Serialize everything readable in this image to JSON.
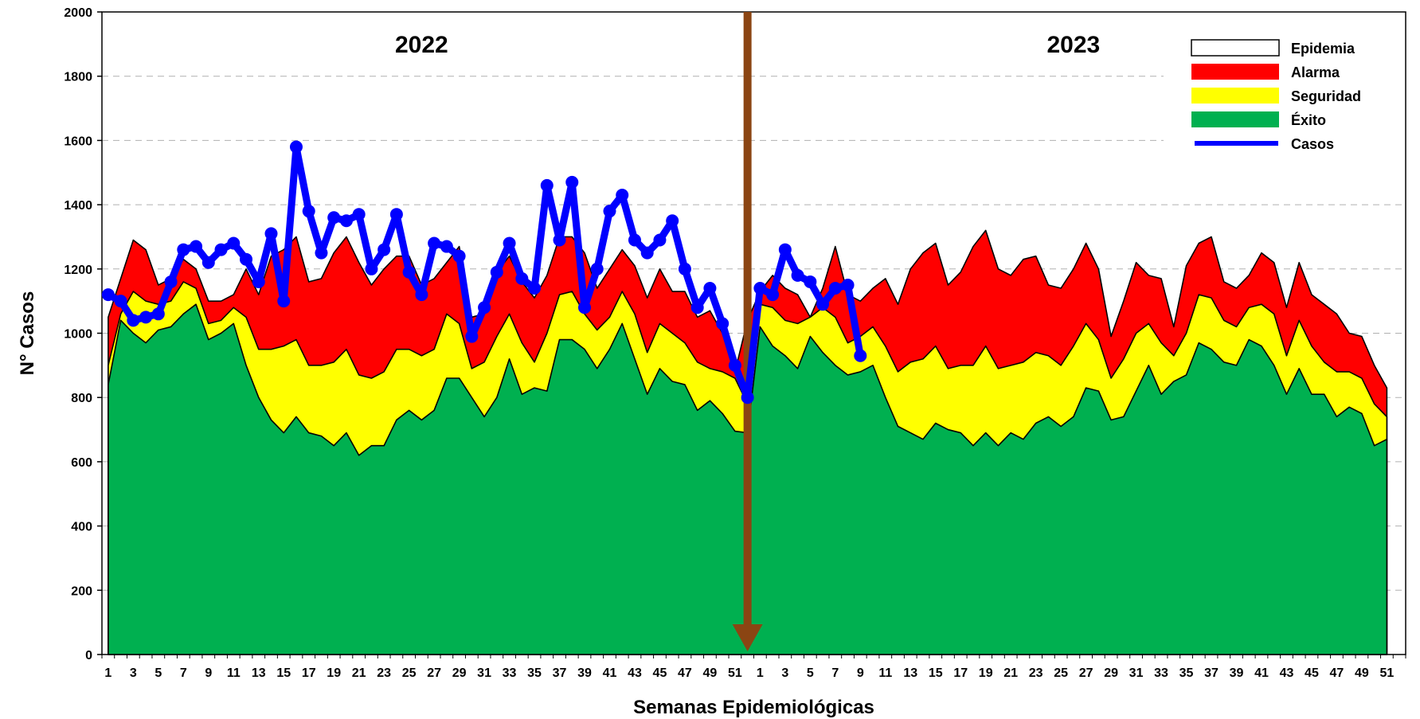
{
  "chart_data": {
    "type": "area",
    "title": "",
    "xlabel": "Semanas Epidemiológicas",
    "ylabel": "N° Casos",
    "ylim": [
      0,
      2000
    ],
    "yticks": [
      0,
      200,
      400,
      600,
      800,
      1000,
      1200,
      1400,
      1600,
      1800,
      2000
    ],
    "grid": "horizontal dashed",
    "legend_position": "top-right",
    "years": [
      "2022",
      "2023"
    ],
    "weeks_per_year": 52,
    "x_tick_labels_2022": [
      "1",
      "3",
      "5",
      "7",
      "9",
      "11",
      "13",
      "15",
      "17",
      "19",
      "21",
      "23",
      "25",
      "27",
      "29",
      "31",
      "33",
      "35",
      "37",
      "39",
      "41",
      "43",
      "45",
      "47",
      "49",
      "51"
    ],
    "x_tick_labels_2023": [
      "1",
      "3",
      "5",
      "7",
      "9",
      "11",
      "13",
      "15",
      "17",
      "19",
      "21",
      "23",
      "25",
      "27",
      "29",
      "31",
      "33",
      "35",
      "37",
      "39",
      "41",
      "43",
      "45",
      "47",
      "49",
      "51"
    ],
    "colors": {
      "epidemia": "#ffffff",
      "alarma": "#ff0000",
      "seguridad": "#ffff00",
      "exito": "#00b050",
      "casos": "#0000ff",
      "arrow": "#8b4513"
    },
    "legend": [
      {
        "name": "Epidemia",
        "type": "box"
      },
      {
        "name": "Alarma",
        "type": "box"
      },
      {
        "name": "Seguridad",
        "type": "box"
      },
      {
        "name": "Éxito",
        "type": "box"
      },
      {
        "name": "Casos",
        "type": "line"
      }
    ],
    "arrow_marker_week_index": 51,
    "series": [
      {
        "name": "Éxito",
        "values": [
          840,
          1040,
          1000,
          970,
          1010,
          1020,
          1060,
          1090,
          980,
          1000,
          1030,
          900,
          800,
          730,
          690,
          740,
          690,
          680,
          650,
          690,
          620,
          650,
          650,
          730,
          760,
          730,
          760,
          860,
          860,
          800,
          740,
          800,
          920,
          810,
          830,
          820,
          980,
          980,
          950,
          890,
          950,
          1030,
          920,
          810,
          890,
          850,
          840,
          760,
          790,
          750,
          695,
          690,
          1020,
          960,
          930,
          890,
          990,
          940,
          900,
          870,
          880,
          900,
          800,
          710,
          690,
          670,
          720,
          700,
          690,
          650,
          690,
          650,
          690,
          670,
          720,
          740,
          710,
          740,
          830,
          820,
          730,
          740,
          820,
          900,
          810,
          850,
          870,
          970,
          950,
          910,
          900,
          980,
          960,
          900,
          810,
          890,
          810,
          810,
          740,
          770,
          750,
          650,
          670
        ]
      },
      {
        "name": "Seguridad",
        "values": [
          900,
          1060,
          1130,
          1100,
          1090,
          1100,
          1160,
          1140,
          1030,
          1040,
          1080,
          1050,
          950,
          950,
          960,
          980,
          900,
          900,
          910,
          950,
          870,
          860,
          880,
          950,
          950,
          930,
          950,
          1060,
          1030,
          890,
          910,
          990,
          1060,
          970,
          910,
          1000,
          1120,
          1130,
          1060,
          1010,
          1050,
          1130,
          1060,
          940,
          1030,
          1000,
          970,
          910,
          890,
          880,
          860,
          780,
          1090,
          1080,
          1040,
          1030,
          1050,
          1080,
          1050,
          970,
          990,
          1020,
          960,
          880,
          910,
          920,
          960,
          890,
          900,
          900,
          960,
          890,
          900,
          910,
          940,
          930,
          900,
          960,
          1030,
          980,
          860,
          920,
          1000,
          1030,
          970,
          930,
          1000,
          1120,
          1110,
          1040,
          1020,
          1080,
          1090,
          1060,
          930,
          1040,
          960,
          910,
          880,
          880,
          860,
          780,
          740
        ]
      },
      {
        "name": "Alarma",
        "values": [
          1050,
          1170,
          1290,
          1260,
          1150,
          1170,
          1230,
          1200,
          1100,
          1100,
          1120,
          1200,
          1120,
          1240,
          1260,
          1300,
          1160,
          1170,
          1250,
          1300,
          1220,
          1150,
          1200,
          1240,
          1240,
          1150,
          1170,
          1220,
          1270,
          1050,
          1060,
          1190,
          1240,
          1160,
          1110,
          1180,
          1300,
          1300,
          1250,
          1140,
          1200,
          1260,
          1210,
          1110,
          1200,
          1130,
          1130,
          1050,
          1070,
          1000,
          880,
          1040,
          1130,
          1180,
          1140,
          1120,
          1050,
          1140,
          1270,
          1120,
          1100,
          1140,
          1170,
          1090,
          1200,
          1250,
          1280,
          1150,
          1190,
          1270,
          1320,
          1200,
          1180,
          1230,
          1240,
          1150,
          1140,
          1200,
          1280,
          1200,
          990,
          1100,
          1220,
          1180,
          1170,
          1020,
          1210,
          1280,
          1300,
          1160,
          1140,
          1180,
          1250,
          1220,
          1080,
          1220,
          1120,
          1090,
          1060,
          1000,
          990,
          900,
          830
        ]
      },
      {
        "name": "Casos",
        "values": [
          1120,
          1100,
          1040,
          1050,
          1060,
          1160,
          1260,
          1270,
          1220,
          1260,
          1280,
          1230,
          1160,
          1310,
          1100,
          1580,
          1380,
          1250,
          1360,
          1350,
          1370,
          1200,
          1260,
          1370,
          1190,
          1120,
          1280,
          1270,
          1240,
          990,
          1080,
          1190,
          1280,
          1170,
          1140,
          1460,
          1290,
          1470,
          1080,
          1200,
          1380,
          1430,
          1290,
          1250,
          1290,
          1350,
          1200,
          1080,
          1140,
          1030,
          900,
          800,
          1140,
          1120,
          1260,
          1180,
          1160,
          1090,
          1140,
          1150,
          930
        ]
      }
    ]
  }
}
